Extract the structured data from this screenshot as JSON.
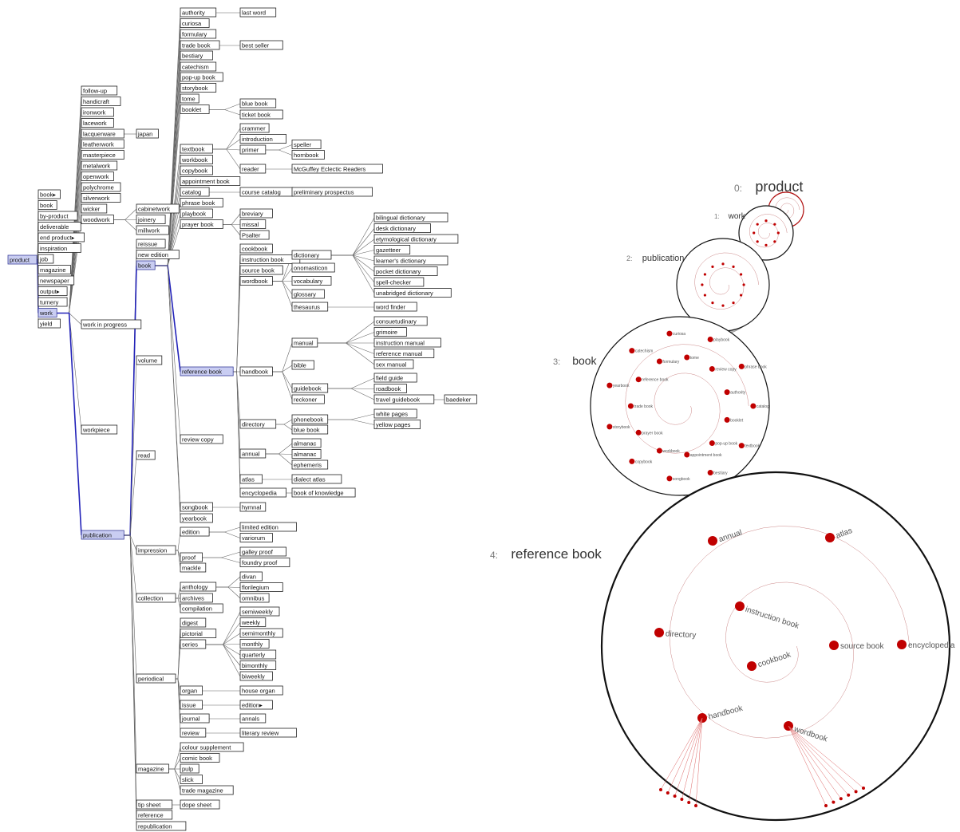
{
  "tree": {
    "product": [
      [
        "book▸",
        ""
      ],
      [
        "book",
        ""
      ],
      [
        "by-product",
        ""
      ],
      [
        "deliverable",
        ""
      ],
      [
        "end product▸",
        ""
      ],
      [
        "inspiration",
        ""
      ],
      [
        "job",
        ""
      ],
      [
        "magazine",
        ""
      ],
      [
        "newspaper",
        ""
      ],
      [
        "output▸",
        ""
      ],
      [
        "turnery",
        ""
      ],
      [
        "work",
        "sel"
      ],
      [
        "yield",
        ""
      ]
    ],
    "work": [
      "follow-up",
      "handicraft",
      "ironwork",
      "lacework",
      "lacquerware",
      "leatherwork",
      "masterpiece",
      "metalwork",
      "openwork",
      "polychrome",
      "silverwork",
      "wicker",
      "woodwork",
      "work in progress",
      "workpiece",
      "publication"
    ],
    "lacquerware": [
      "japan"
    ],
    "woodwork": [
      "cabinetwork",
      "joinery",
      "millwork"
    ],
    "publication": [
      "reissue",
      "new edition",
      "book",
      "volume",
      "read",
      "impression",
      "collection",
      "periodical",
      "magazine",
      "tip sheet",
      "reference",
      "republication"
    ],
    "book": [
      "authority",
      "curiosa",
      "formulary",
      "trade book",
      "bestiary",
      "catechism",
      "pop-up book",
      "storybook",
      "tome",
      "booklet",
      "textbook",
      "workbook",
      "copybook",
      "appointment book",
      "catalog",
      "phrase book",
      "playbook",
      "prayer book",
      "reference book",
      "review copy",
      "songbook",
      "yearbook"
    ],
    "authority": [
      "last word"
    ],
    "trade book": [
      "best seller"
    ],
    "booklet": [
      "blue book",
      "ticket book"
    ],
    "textbook": [
      "crammer",
      "introduction",
      "primer",
      "reader"
    ],
    "primer": [
      "speller",
      "hornbook"
    ],
    "reader": [
      "McGuffey Eclectic Readers"
    ],
    "catalog": [
      "course catalog"
    ],
    "course catalog": [
      "preliminary prospectus"
    ],
    "prayer book": [
      "breviary",
      "missal",
      "Psalter"
    ],
    "reference book": [
      "cookbook",
      "instruction book",
      "source book",
      "wordbook",
      "handbook",
      "directory",
      "annual",
      "atlas",
      "encyclopedia"
    ],
    "wordbook": [
      "dictionary",
      "onomasticon",
      "vocabulary",
      "glossary",
      "thesaurus"
    ],
    "dictionary": [
      "bilingual dictionary",
      "desk dictionary",
      "etymological dictionary",
      "gazetteer",
      "learner's dictionary",
      "pocket dictionary",
      "spell-checker",
      "unabridged dictionary"
    ],
    "thesaurus": [
      "word finder"
    ],
    "handbook": [
      "manual",
      "bible",
      "guidebook",
      "reckoner"
    ],
    "manual": [
      "consuetudinary",
      "grimoire",
      "instruction manual",
      "reference manual",
      "sex manual"
    ],
    "guidebook": [
      "field guide",
      "roadbook",
      "travel guidebook"
    ],
    "travel guidebook": [
      "baedeker"
    ],
    "directory": [
      "phonebook",
      "blue book"
    ],
    "phonebook": [
      "white pages",
      "yellow pages"
    ],
    "annual": [
      "almanac",
      "almanac",
      "ephemeris"
    ],
    "atlas": [
      "dialect atlas"
    ],
    "encyclopedia": [
      "book of knowledge"
    ],
    "songbook": [
      "hymnal"
    ],
    "impression": [
      "edition",
      "proof",
      "mackle"
    ],
    "edition": [
      "limited edition",
      "variorum"
    ],
    "proof": [
      "galley proof",
      "foundry proof"
    ],
    "collection": [
      "anthology",
      "archives",
      "compilation"
    ],
    "anthology": [
      "divan",
      "florilegium",
      "omnibus"
    ],
    "periodical": [
      "digest",
      "pictorial",
      "series",
      "organ",
      "issue",
      "journal",
      "review"
    ],
    "series": [
      "semiweekly",
      "weekly",
      "semimonthly",
      "monthly",
      "quarterly",
      "bimonthly",
      "biweekly"
    ],
    "organ": [
      "house organ"
    ],
    "issue": [
      "edition▸"
    ],
    "journal": [
      "annals"
    ],
    "review": [
      "literary review"
    ],
    "magazine": [
      "colour supplement",
      "comic book",
      "pulp",
      "slick",
      "trade magazine"
    ],
    "tip sheet": [
      "dope sheet"
    ]
  },
  "levels": [
    {
      "num": "0:",
      "name": "product"
    },
    {
      "num": "1:",
      "name": "work"
    },
    {
      "num": "2:",
      "name": "publication"
    },
    {
      "num": "3:",
      "name": "book"
    },
    {
      "num": "4:",
      "name": "reference book"
    }
  ],
  "circle_labels": [
    "annual",
    "atlas",
    "instruction book",
    "directory",
    "source book",
    "encyclopedia",
    "cookbook",
    "handbook",
    "wordbook"
  ],
  "book_labels": [
    "catalog",
    "booklet",
    "textbook",
    "pop-up book",
    "bestiary",
    "appointment book",
    "songbook",
    "workbook",
    "copybook",
    "prayer book",
    "storybook",
    "trade book",
    "yearbook",
    "reference book",
    "catechism",
    "formulary",
    "curiosa",
    "tome",
    "playbook",
    "review copy",
    "phrase book",
    "authority"
  ],
  "colors": {
    "accent": "#c00000",
    "selected": "#2222b8",
    "selfill": "#c9cdf2"
  }
}
